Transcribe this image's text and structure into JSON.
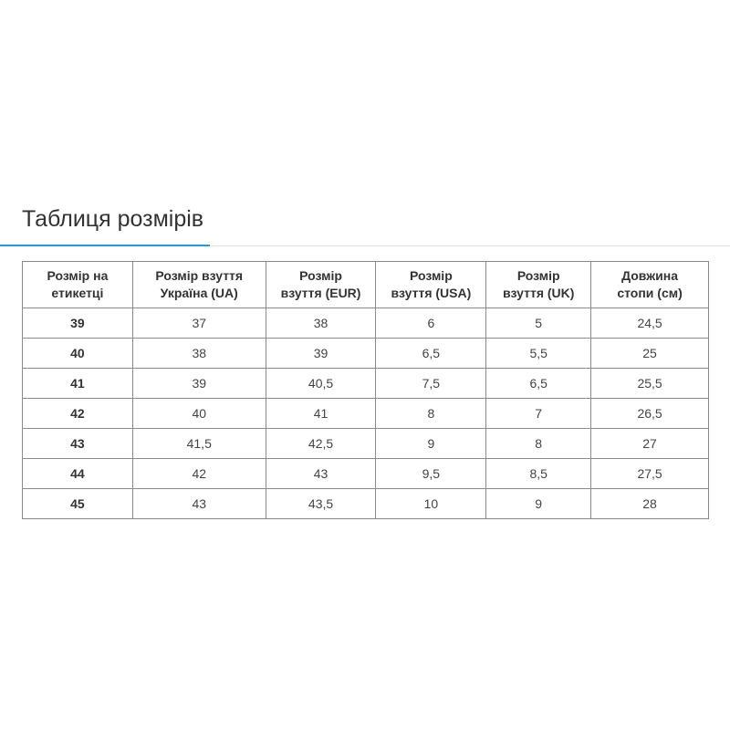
{
  "title": "Таблиця розмірів",
  "accent_color": "#1e9ae0",
  "table": {
    "headers": [
      [
        "Розмір на",
        "етикетці"
      ],
      [
        "Розмір взуття",
        "Україна (UA)"
      ],
      [
        "Розмір",
        "взуття (EUR)"
      ],
      [
        "Розмір",
        "взуття (USA)"
      ],
      [
        "Розмір",
        "взуття (UK)"
      ],
      [
        "Довжина",
        "стопи (см)"
      ]
    ],
    "rows": [
      [
        "39",
        "37",
        "38",
        "6",
        "5",
        "24,5"
      ],
      [
        "40",
        "38",
        "39",
        "6,5",
        "5,5",
        "25"
      ],
      [
        "41",
        "39",
        "40,5",
        "7,5",
        "6,5",
        "25,5"
      ],
      [
        "42",
        "40",
        "41",
        "8",
        "7",
        "26,5"
      ],
      [
        "43",
        "41,5",
        "42,5",
        "9",
        "8",
        "27"
      ],
      [
        "44",
        "42",
        "43",
        "9,5",
        "8,5",
        "27,5"
      ],
      [
        "45",
        "43",
        "43,5",
        "10",
        "9",
        "28"
      ]
    ]
  }
}
